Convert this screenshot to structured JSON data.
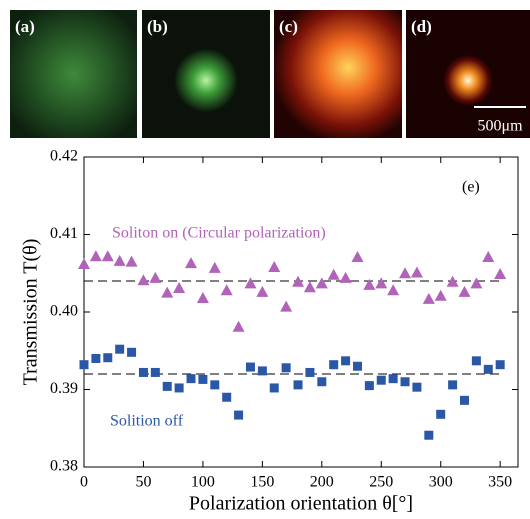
{
  "panels": {
    "labels": [
      "(a)",
      "(b)",
      "(c)",
      "(d)"
    ],
    "scale_bar": "500μm"
  },
  "chart_data": {
    "type": "scatter",
    "xlabel": "Polarization orientation θ[°]",
    "ylabel": "Transmission  T(θ)",
    "panel_label": "(e)",
    "x": [
      0,
      10,
      20,
      30,
      40,
      50,
      60,
      70,
      80,
      90,
      100,
      110,
      120,
      130,
      140,
      150,
      160,
      170,
      180,
      190,
      200,
      210,
      220,
      230,
      240,
      250,
      260,
      270,
      280,
      290,
      300,
      310,
      320,
      330,
      340,
      350
    ],
    "series": [
      {
        "name": "Soliton on (Circular polarization)",
        "color": "#b063b8",
        "marker": "triangle",
        "values": [
          0.4062,
          0.4072,
          0.4072,
          0.4066,
          0.4065,
          0.4041,
          0.4044,
          0.4025,
          0.4031,
          0.4063,
          0.4018,
          0.4057,
          0.4028,
          0.3981,
          0.4037,
          0.4026,
          0.4058,
          0.4007,
          0.4039,
          0.4032,
          0.4037,
          0.4048,
          0.4044,
          0.4071,
          0.4035,
          0.4037,
          0.4028,
          0.405,
          0.4051,
          0.4017,
          0.4021,
          0.4039,
          0.4026,
          0.4037,
          0.4071,
          0.4049
        ]
      },
      {
        "name": "Solition off",
        "color": "#2b58a6",
        "marker": "square",
        "values": [
          0.3932,
          0.394,
          0.3941,
          0.3952,
          0.3948,
          0.3922,
          0.3922,
          0.3904,
          0.3902,
          0.3914,
          0.3913,
          0.3906,
          0.389,
          0.3867,
          0.3929,
          0.3924,
          0.3902,
          0.3928,
          0.3906,
          0.3922,
          0.391,
          0.3932,
          0.3937,
          0.393,
          0.3905,
          0.3912,
          0.3914,
          0.391,
          0.3903,
          0.3841,
          0.3868,
          0.3906,
          0.3886,
          0.3937,
          0.3926,
          0.3932
        ]
      }
    ],
    "hlines": [
      0.404,
      0.392
    ],
    "xlim": [
      0,
      365
    ],
    "xticks": [
      0,
      50,
      100,
      150,
      200,
      250,
      300,
      350
    ],
    "ylim": [
      0.38,
      0.42
    ],
    "yticks": [
      0.38,
      0.39,
      {
        "value": 0.4,
        "label": "0.40"
      },
      0.41,
      0.42
    ]
  }
}
